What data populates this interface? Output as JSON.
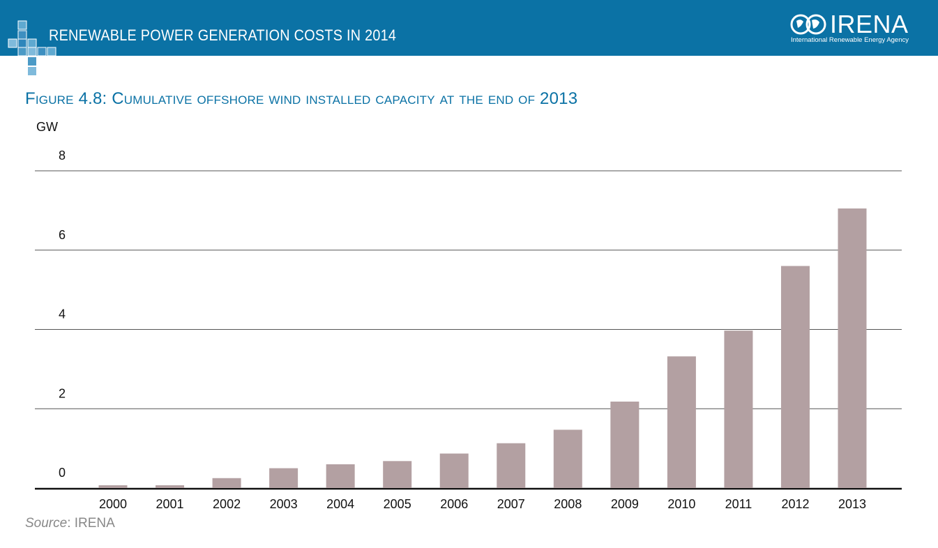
{
  "header": {
    "title": "RENEWABLE POWER GENERATION COSTS IN 2014",
    "logo_text": "IRENA",
    "logo_subtitle": "International Renewable Energy Agency",
    "color": "#0b72a5"
  },
  "figure": {
    "title": "Figure 4.8: Cumulative offshore wind installed capacity at the end of 2013"
  },
  "source": {
    "label": "Source",
    "text": ": IRENA"
  },
  "chart_data": {
    "type": "bar",
    "title": "Figure 4.8: Cumulative offshore wind installed capacity at the end of 2013",
    "ylabel": "GW",
    "xlabel": "",
    "categories": [
      "2000",
      "2001",
      "2002",
      "2003",
      "2004",
      "2005",
      "2006",
      "2007",
      "2008",
      "2009",
      "2010",
      "2011",
      "2012",
      "2013"
    ],
    "values": [
      0.07,
      0.07,
      0.25,
      0.5,
      0.6,
      0.68,
      0.87,
      1.13,
      1.47,
      2.18,
      3.32,
      3.97,
      5.6,
      7.05
    ],
    "ylim": [
      0,
      8
    ],
    "yticks": [
      "0",
      "2",
      "4",
      "6",
      "8"
    ],
    "grid": true,
    "legend": "none",
    "bar_color": "#b3a0a2"
  }
}
